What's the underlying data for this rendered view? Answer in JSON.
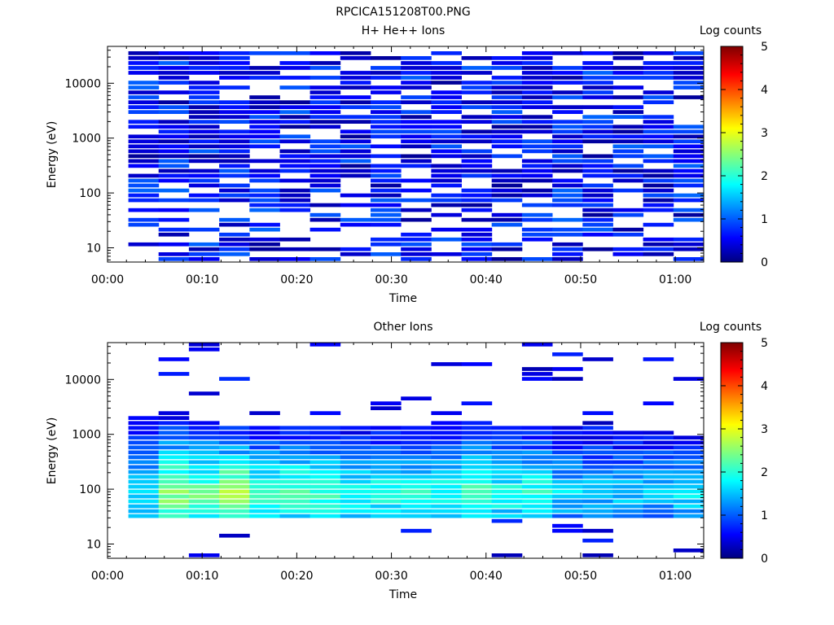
{
  "figure_title": "RPCICA151208T00.PNG",
  "chart_data": [
    {
      "type": "heatmap",
      "title": "H+ He++ Ions",
      "xlabel": "Time",
      "ylabel": "Energy (eV)",
      "x_ticks": [
        "00:00",
        "00:10",
        "00:20",
        "00:30",
        "00:40",
        "00:50",
        "01:00"
      ],
      "x_tick_minutes": [
        0,
        10,
        20,
        30,
        40,
        50,
        60
      ],
      "xlim_minutes": [
        0,
        63
      ],
      "y_scale": "log",
      "ylim": [
        5.5,
        47000
      ],
      "y_ticks": [
        "10",
        "100",
        "1000",
        "10000"
      ],
      "y_tick_values": [
        10,
        100,
        1000,
        10000
      ],
      "colorbar_label": "Log counts",
      "colorbar_ticks": [
        "0",
        "1",
        "2",
        "3",
        "4",
        "5"
      ],
      "colorbar_range": [
        0,
        5
      ],
      "colormap": [
        "#00007f",
        "#0000ff",
        "#00ffff",
        "#ffff00",
        "#ff0000",
        "#7f0000"
      ],
      "time_bins_minutes": [
        2.2,
        5.4,
        8.6,
        11.8,
        15.0,
        18.2,
        21.4,
        24.6,
        27.8,
        31.0,
        34.2,
        37.4,
        40.6,
        43.8,
        47.0,
        50.2,
        53.4,
        56.6,
        59.8,
        63.0
      ],
      "description_of_data": "Sparse low counts (log counts ~0-1) spanning roughly 10 eV to 40000 eV across all time bins"
    },
    {
      "type": "heatmap",
      "title": "Other Ions",
      "xlabel": "Time",
      "ylabel": "Energy (eV)",
      "x_ticks": [
        "00:00",
        "00:10",
        "00:20",
        "00:30",
        "00:40",
        "00:50",
        "01:00"
      ],
      "x_tick_minutes": [
        0,
        10,
        20,
        30,
        40,
        50,
        60
      ],
      "xlim_minutes": [
        0,
        63
      ],
      "y_scale": "log",
      "ylim": [
        5.5,
        47000
      ],
      "y_ticks": [
        "10",
        "100",
        "1000",
        "10000"
      ],
      "y_tick_values": [
        10,
        100,
        1000,
        10000
      ],
      "colorbar_label": "Log counts",
      "colorbar_ticks": [
        "0",
        "1",
        "2",
        "3",
        "4",
        "5"
      ],
      "colorbar_range": [
        0,
        5
      ],
      "colormap": [
        "#00007f",
        "#0000ff",
        "#00ffff",
        "#ffff00",
        "#ff0000",
        "#7f0000"
      ],
      "time_bins_minutes": [
        2.2,
        5.4,
        8.6,
        11.8,
        15.0,
        18.2,
        21.4,
        24.6,
        27.8,
        31.0,
        34.2,
        37.4,
        40.6,
        43.8,
        47.0,
        50.2,
        53.4,
        56.6,
        59.8,
        63.0
      ],
      "band_peak_log_counts": [
        1.8,
        2.6,
        2.4,
        2.7,
        2.2,
        2.3,
        2.2,
        2.0,
        2.0,
        1.9,
        2.0,
        2.3,
        2.0,
        2.0,
        1.6,
        1.6,
        1.6,
        1.6,
        1.8
      ],
      "band_low_ev": [
        28,
        30,
        28,
        30,
        28,
        30,
        28,
        30,
        28,
        30,
        28,
        30,
        28,
        30,
        28,
        30,
        28,
        30,
        28
      ],
      "band_high_ev": [
        2000,
        2000,
        1800,
        1500,
        1500,
        1500,
        1500,
        1400,
        1400,
        1400,
        1800,
        1600,
        1500,
        1500,
        1300,
        1200,
        1100,
        1100,
        1000
      ],
      "description_of_data": "Main population of log counts ~1-2.7 between about 30 eV and 2000 eV, with sparse low-count points up to ~40000 eV and below 30 eV"
    }
  ]
}
